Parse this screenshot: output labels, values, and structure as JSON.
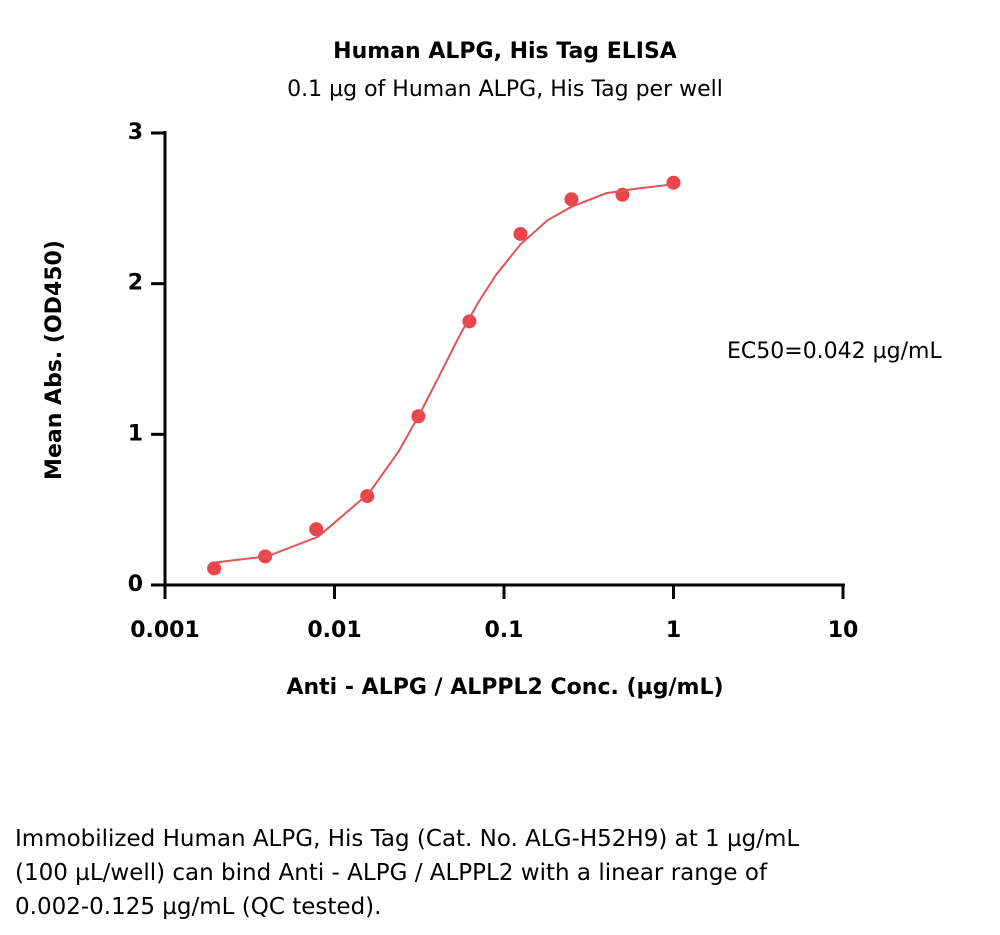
{
  "chart_data": {
    "type": "scatter",
    "title": "Human ALPG, His Tag ELISA",
    "subtitle": "0.1 µg of Human ALPG, His Tag per well",
    "x_label": "Anti - ALPG / ALPPL2 Conc. (µg/mL)",
    "y_label": "Mean Abs. (OD450)",
    "annotation": "EC50=0.042 µg/mL",
    "log_x": true,
    "xlim": [
      0.001,
      10
    ],
    "xticks": [
      0.001,
      0.01,
      0.1,
      1,
      10
    ],
    "ylim": [
      0,
      3
    ],
    "yticks": [
      0,
      1,
      2,
      3
    ],
    "series": [
      {
        "color": "#e8464b",
        "mode": "markers",
        "x": [
          0.00195,
          0.0039,
          0.0078,
          0.0156,
          0.03125,
          0.0625,
          0.125,
          0.25,
          0.5,
          1
        ],
        "values": [
          0.11,
          0.19,
          0.37,
          0.59,
          1.12,
          1.75,
          2.33,
          2.56,
          2.59,
          2.67
        ]
      },
      {
        "color": "#e05555",
        "mode": "line",
        "x": [
          0.002,
          0.004,
          0.008,
          0.016,
          0.024,
          0.032,
          0.042,
          0.055,
          0.07,
          0.09,
          0.125,
          0.18,
          0.25,
          0.4,
          0.6,
          1
        ],
        "values": [
          0.15,
          0.19,
          0.32,
          0.61,
          0.89,
          1.14,
          1.4,
          1.66,
          1.87,
          2.06,
          2.26,
          2.42,
          2.51,
          2.6,
          2.63,
          2.66
        ]
      }
    ]
  },
  "caption": "Immobilized Human ALPG, His Tag (Cat. No. ALG-H52H9) at 1 µg/mL (100 µL/well) can bind Anti - ALPG / ALPPL2 with a linear range of 0.002-0.125 µg/mL (QC tested)."
}
